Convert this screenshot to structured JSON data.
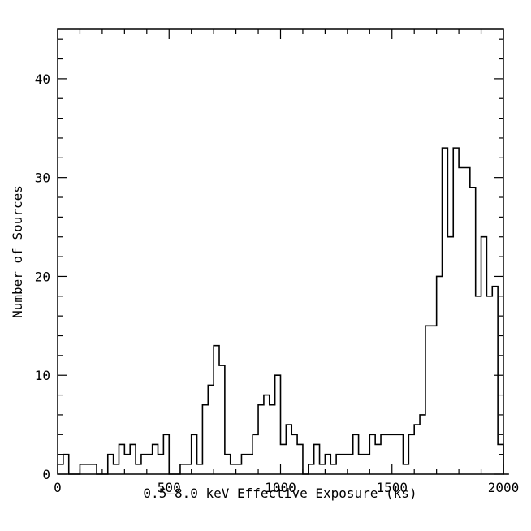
{
  "chart_data": {
    "type": "bar",
    "style": "step-histogram",
    "xlabel": "0.5–8.0 keV Effective Exposure (ks)",
    "ylabel": "Number of Sources",
    "xlim": [
      0,
      2000
    ],
    "ylim": [
      0,
      45
    ],
    "xticks": [
      0,
      500,
      1000,
      1500,
      2000
    ],
    "xtick_labels": [
      "0",
      "500",
      "1000",
      "1500",
      "2000"
    ],
    "yticks": [
      0,
      10,
      20,
      30,
      40
    ],
    "ytick_labels": [
      "0",
      "10",
      "20",
      "30",
      "40"
    ],
    "grid": false,
    "bin_width": 25,
    "bin_start": 0,
    "values": [
      1,
      2,
      0,
      0,
      1,
      1,
      1,
      0,
      0,
      2,
      1,
      3,
      2,
      3,
      1,
      2,
      2,
      3,
      2,
      4,
      0,
      0,
      1,
      1,
      4,
      1,
      7,
      9,
      13,
      11,
      2,
      1,
      1,
      2,
      2,
      4,
      7,
      8,
      7,
      10,
      3,
      5,
      4,
      3,
      0,
      1,
      3,
      1,
      2,
      1,
      2,
      2,
      2,
      4,
      2,
      2,
      4,
      3,
      4,
      4,
      4,
      4,
      1,
      4,
      5,
      6,
      15,
      15,
      20,
      33,
      24,
      33,
      31,
      31,
      29,
      18,
      24,
      18,
      19,
      3,
      0
    ]
  }
}
